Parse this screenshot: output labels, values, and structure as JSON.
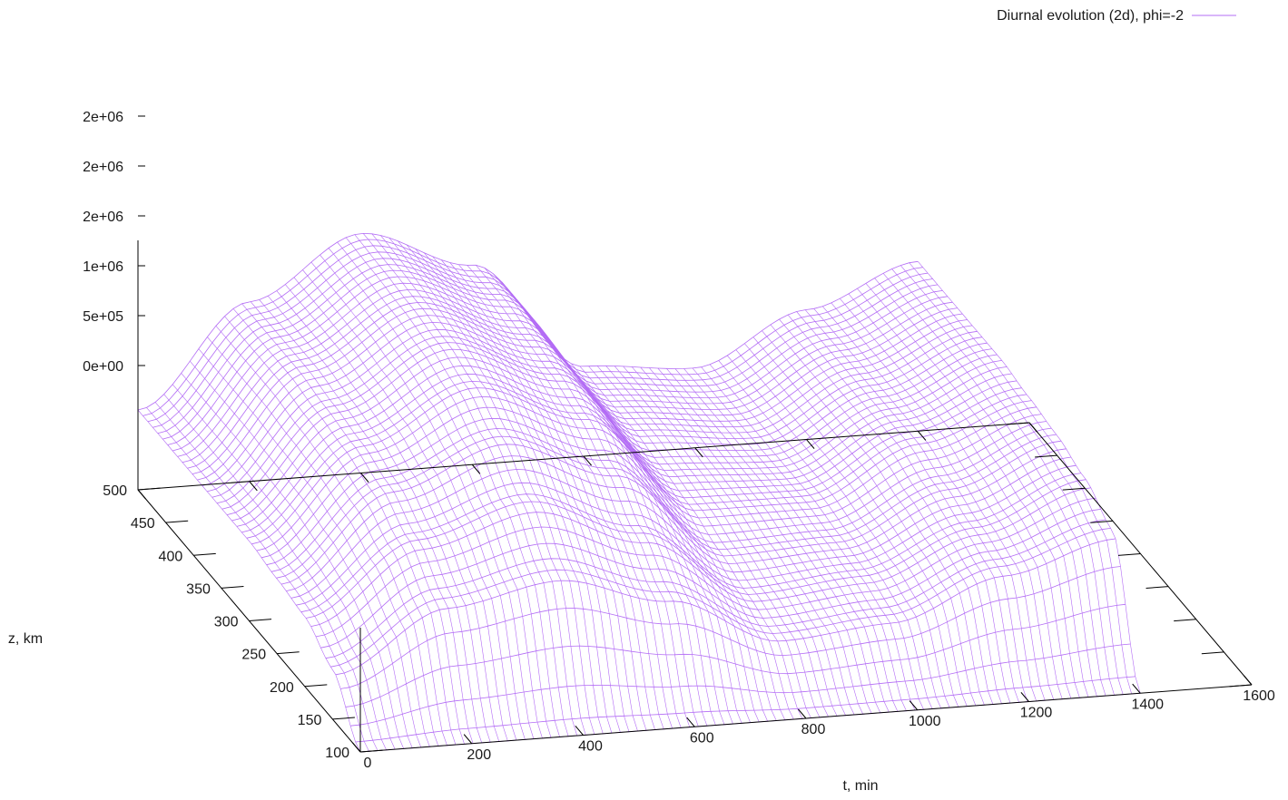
{
  "chart_data": {
    "type": "surface",
    "legend": {
      "label": "Diurnal evolution (2d), phi=-2",
      "position": "top-right",
      "color": "#b36cf5"
    },
    "axes": {
      "x": {
        "label": "t, min",
        "range": [
          0,
          1600
        ],
        "ticks": [
          "0",
          "200",
          "400",
          "600",
          "800",
          "1000",
          "1200",
          "1400",
          "1600"
        ]
      },
      "y": {
        "label": "z, km",
        "range": [
          100,
          500
        ],
        "ticks": [
          "100",
          "150",
          "200",
          "250",
          "300",
          "350",
          "400",
          "450",
          "500"
        ]
      },
      "z": {
        "label": "",
        "ticks": [
          "0e+00",
          "5e+05",
          "1e+06",
          "2e+06",
          "2e+06",
          "2e+06"
        ],
        "tick_values": [
          0,
          500000,
          1000000,
          1500000,
          2000000,
          2500000
        ]
      }
    },
    "grid": false,
    "series": [
      {
        "name": "Diurnal evolution (2d), phi=-2",
        "t": [
          0,
          200,
          400,
          600,
          800,
          1000,
          1200,
          1400
        ],
        "z": [
          100,
          150,
          200,
          250,
          300,
          350,
          400,
          450,
          500
        ],
        "density": [
          [
            0,
            0,
            0,
            0,
            0,
            0,
            0,
            0
          ],
          [
            500000,
            1100000,
            1300000,
            1000000,
            500000,
            600000,
            1000000,
            1300000
          ],
          [
            700000,
            1400000,
            1700000,
            1300000,
            600000,
            700000,
            1100000,
            1500000
          ],
          [
            750000,
            1600000,
            2000000,
            1600000,
            700000,
            750000,
            1200000,
            1600000
          ],
          [
            800000,
            1700000,
            2200000,
            1800000,
            800000,
            800000,
            1300000,
            1650000
          ],
          [
            800000,
            1750000,
            2300000,
            1900000,
            850000,
            800000,
            1300000,
            1700000
          ],
          [
            800000,
            1800000,
            2350000,
            1950000,
            900000,
            800000,
            1300000,
            1700000
          ],
          [
            800000,
            1800000,
            2380000,
            2000000,
            900000,
            800000,
            1300000,
            1700000
          ],
          [
            800000,
            1800000,
            2400000,
            2000000,
            900000,
            800000,
            1300000,
            1700000
          ]
        ]
      }
    ]
  }
}
